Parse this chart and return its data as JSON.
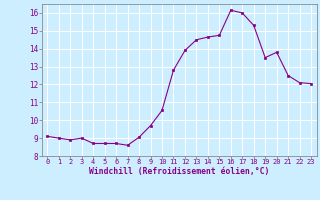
{
  "x": [
    0,
    1,
    2,
    3,
    4,
    5,
    6,
    7,
    8,
    9,
    10,
    11,
    12,
    13,
    14,
    15,
    16,
    17,
    18,
    19,
    20,
    21,
    22,
    23
  ],
  "y": [
    9.1,
    9.0,
    8.9,
    9.0,
    8.7,
    8.7,
    8.7,
    8.6,
    9.05,
    9.7,
    10.55,
    12.8,
    13.9,
    14.5,
    14.65,
    14.75,
    16.15,
    16.0,
    15.3,
    13.5,
    13.8,
    12.5,
    12.1,
    12.05
  ],
  "line_color": "#880088",
  "marker": "s",
  "marker_size": 1.8,
  "bg_color": "#cceeff",
  "grid_color": "#ffffff",
  "xlabel": "Windchill (Refroidissement éolien,°C)",
  "xlabel_color": "#880088",
  "tick_color": "#880088",
  "ylim": [
    8,
    16.5
  ],
  "xlim": [
    -0.5,
    23.5
  ],
  "yticks": [
    8,
    9,
    10,
    11,
    12,
    13,
    14,
    15,
    16
  ],
  "xticks": [
    0,
    1,
    2,
    3,
    4,
    5,
    6,
    7,
    8,
    9,
    10,
    11,
    12,
    13,
    14,
    15,
    16,
    17,
    18,
    19,
    20,
    21,
    22,
    23
  ],
  "xtick_fontsize": 5.0,
  "ytick_fontsize": 5.5,
  "xlabel_fontsize": 5.8
}
